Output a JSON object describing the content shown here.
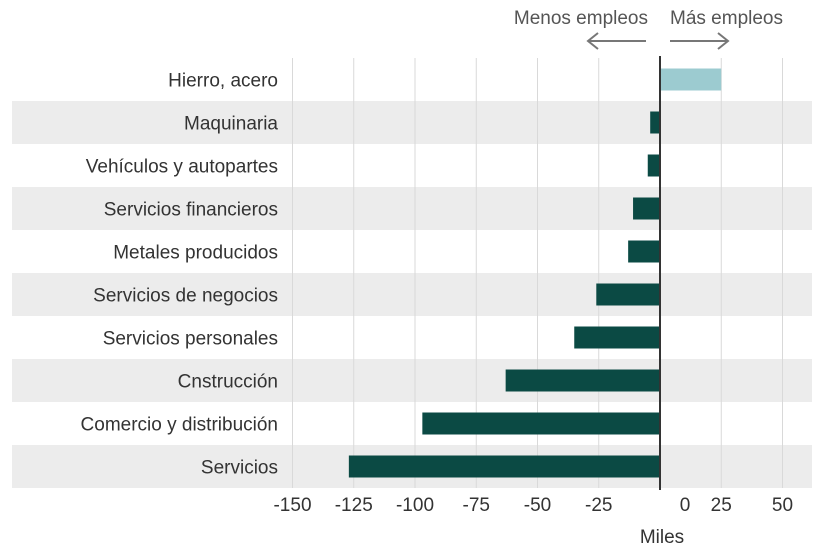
{
  "chart_data": {
    "type": "bar",
    "orientation": "horizontal",
    "categories": [
      "Hierro, acero",
      "Maquinaria",
      "Vehículos y autopartes",
      "Servicios financieros",
      "Metales producidos",
      "Servicios de negocios",
      "Servicios personales",
      "Cnstrucción",
      "Comercio y distribución",
      "Servicios"
    ],
    "values": [
      25,
      -4,
      -5,
      -11,
      -13,
      -26,
      -35,
      -63,
      -97,
      -127
    ],
    "xlabel": "Miles",
    "xlim": [
      -150,
      60
    ],
    "xticks": [
      -150,
      -125,
      -100,
      -75,
      -50,
      -25,
      0,
      25,
      50
    ],
    "xtick_labels": [
      "-150",
      "-125",
      "-100",
      "-75",
      "-50",
      "-25",
      "0",
      "25",
      "50"
    ],
    "annotations": {
      "negative": "Menos empleos",
      "positive": "Más empleos"
    },
    "colors": {
      "positive": "#9ccbd0",
      "negative": "#0b4a44",
      "row_band": "#ececec",
      "grid": "#d9d9d9",
      "zero_line": "#333333",
      "arrow": "#777777"
    },
    "grid": true
  }
}
